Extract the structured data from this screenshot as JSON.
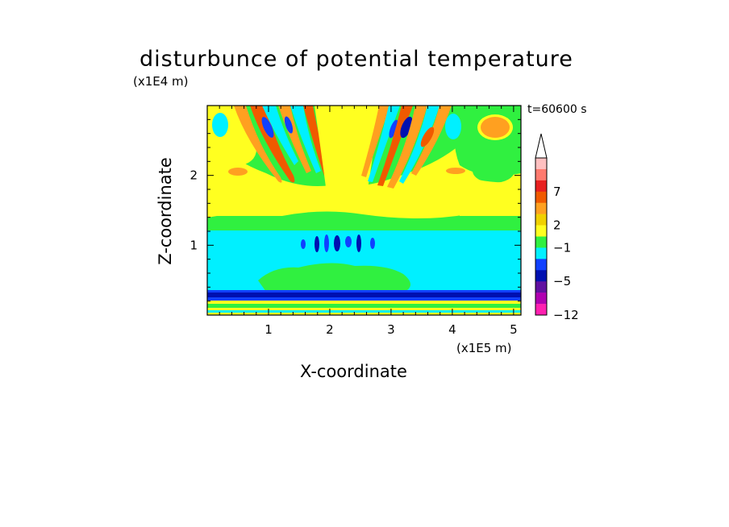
{
  "title": "disturbunce of potential temperature",
  "y_unit": "(x1E4 m)",
  "x_unit": "(x1E5 m)",
  "time_label": "t=60600 s",
  "chart_data": {
    "type": "heatmap",
    "title": "disturbunce of potential temperature",
    "xlabel": "X-coordinate",
    "ylabel": "Z-coordinate",
    "x_unit": "(x1E5 m)",
    "y_unit": "(x1E4 m)",
    "xlim": [
      0,
      5.12
    ],
    "ylim": [
      0,
      3.0
    ],
    "x_ticks": [
      "1",
      "2",
      "3",
      "4",
      "5"
    ],
    "y_ticks": [
      "1",
      "2"
    ],
    "x_tick_values": [
      1,
      2,
      3,
      4,
      5
    ],
    "y_tick_values": [
      1,
      2
    ],
    "colorbar": {
      "tick_labels": [
        "7",
        "2",
        "−1",
        "−5",
        "−12"
      ],
      "colors_top_to_bottom": [
        "#ffc0c0",
        "#ff7a6e",
        "#e82020",
        "#f05a00",
        "#ffa020",
        "#f0d000",
        "#ffff20",
        "#30f040",
        "#00f0ff",
        "#1040ff",
        "#0010b0",
        "#6010a0",
        "#b000b0",
        "#ff20b0"
      ],
      "extend_top": true
    }
  }
}
